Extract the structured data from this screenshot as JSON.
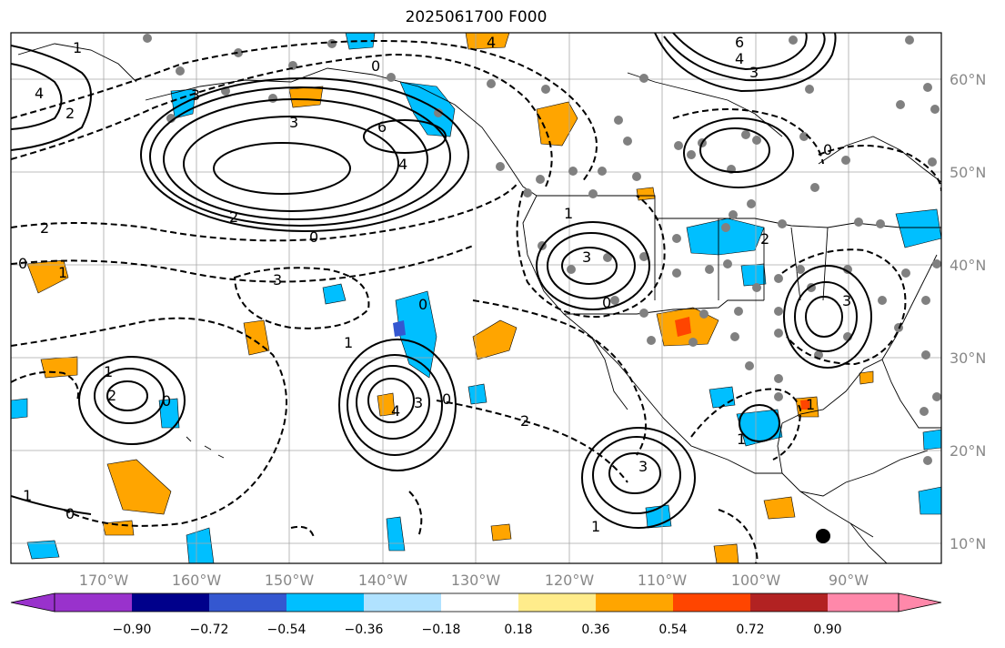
{
  "title": "2025061700 F000",
  "map": {
    "lon_labels": [
      "170°W",
      "160°W",
      "150°W",
      "140°W",
      "130°W",
      "120°W",
      "110°W",
      "100°W",
      "90°W"
    ],
    "lat_labels": [
      "60°N",
      "50°N",
      "40°N",
      "30°N",
      "20°N",
      "10°N"
    ],
    "grid": true
  },
  "contour_labels": [
    "1",
    "3",
    "2",
    "4",
    "6",
    "3",
    "2",
    "0",
    "2",
    "0",
    "3",
    "1",
    "4",
    "3",
    "1",
    "0",
    "2",
    "0",
    "1",
    "3",
    "1",
    "2",
    "1",
    "0",
    "0",
    "3",
    "4",
    "1",
    "3",
    "1",
    "1",
    "0",
    "0",
    "2",
    "0",
    "4",
    "6",
    "4",
    "3"
  ],
  "colorbar": {
    "tick_labels": [
      "−0.90",
      "−0.72",
      "−0.54",
      "−0.36",
      "−0.18",
      "0.18",
      "0.36",
      "0.54",
      "0.72",
      "0.90"
    ],
    "colors": [
      "#9932cc",
      "#00008b",
      "#3457d0",
      "#00bfff",
      "#b0e2ff",
      "#ffffff",
      "#ffec8b",
      "#ffa500",
      "#ff4500",
      "#b22222",
      "#ff88aa"
    ]
  }
}
